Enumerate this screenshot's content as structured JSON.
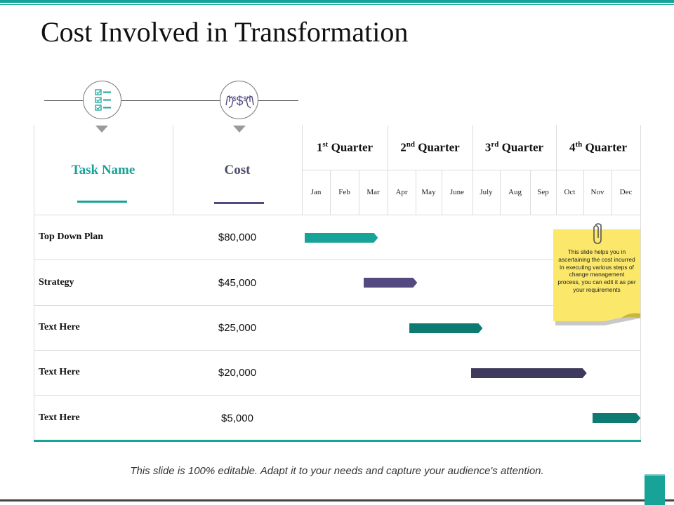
{
  "title": "Cost Involved in Transformation",
  "headers": {
    "task": "Task Name",
    "cost": "Cost"
  },
  "quarters": [
    {
      "num": "1",
      "suffix": "st",
      "label": "Quarter"
    },
    {
      "num": "2",
      "suffix": "nd",
      "label": "Quarter"
    },
    {
      "num": "3",
      "suffix": "rd",
      "label": "Quarter"
    },
    {
      "num": "4",
      "suffix": "th",
      "label": "Quarter"
    }
  ],
  "months": [
    "Jan",
    "Feb",
    "Mar",
    "Apr",
    "May",
    "June",
    "July",
    "Aug",
    "Sep",
    "Oct",
    "Nov",
    "Dec"
  ],
  "rows": [
    {
      "task": "Top Down Plan",
      "cost": "$80,000",
      "start_month": 0.1,
      "end_month": 2.7,
      "color": "#17a398"
    },
    {
      "task": "Strategy",
      "cost": "$45,000",
      "start_month": 2.2,
      "end_month": 4.1,
      "color": "#544a80"
    },
    {
      "task": "Text Here",
      "cost": "$25,000",
      "start_month": 3.8,
      "end_month": 6.4,
      "color": "#0e7b72"
    },
    {
      "task": "Text Here",
      "cost": "$20,000",
      "start_month": 6.0,
      "end_month": 10.1,
      "color": "#3e3a5e"
    },
    {
      "task": "Text Here",
      "cost": "$5,000",
      "start_month": 10.3,
      "end_month": 12.0,
      "color": "#0e7b72"
    }
  ],
  "note": {
    "text": "This slide helps you in ascertaining the cost incurred in executing various steps of change management process, you can edit it as per your requirements",
    "color": "#fbe76a"
  },
  "footer": "This slide is 100% editable. Adapt it to your needs and capture your audience's attention.",
  "icons": {
    "task": "checklist-icon",
    "cost": "money-hands-icon"
  },
  "colors": {
    "accent_teal": "#17a398",
    "accent_purple": "#544a80"
  }
}
